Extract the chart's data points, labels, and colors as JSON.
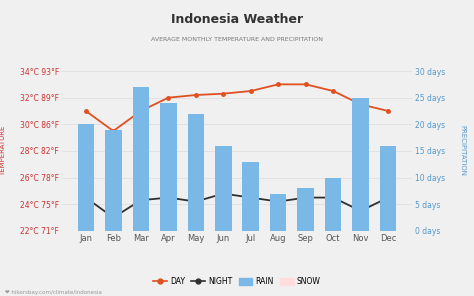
{
  "title": "Indonesia Weather",
  "subtitle": "AVERAGE MONTHLY TEMPERATURE AND PRECIPITATION",
  "months": [
    "Jan",
    "Feb",
    "Mar",
    "Apr",
    "May",
    "Jun",
    "Jul",
    "Aug",
    "Sep",
    "Oct",
    "Nov",
    "Dec"
  ],
  "day_temp": [
    31.0,
    29.5,
    31.0,
    32.0,
    32.2,
    32.3,
    32.5,
    33.0,
    33.0,
    32.5,
    31.5,
    31.0
  ],
  "night_temp": [
    24.5,
    23.0,
    24.3,
    24.5,
    24.2,
    24.8,
    24.5,
    24.2,
    24.5,
    24.5,
    23.5,
    24.5
  ],
  "rain_days": [
    20,
    19,
    27,
    24,
    22,
    16,
    13,
    7,
    8,
    10,
    25,
    16
  ],
  "ylim_left": [
    22,
    34
  ],
  "ylim_right": [
    0,
    30
  ],
  "yticks_left": [
    22,
    24,
    26,
    28,
    30,
    32,
    34
  ],
  "ytick_labels_left": [
    "22°C 71°F",
    "24°C 75°F",
    "26°C 78°F",
    "28°C 82°F",
    "30°C 86°F",
    "32°C 89°F",
    "34°C 93°F"
  ],
  "yticks_right": [
    0,
    5,
    10,
    15,
    20,
    25,
    30
  ],
  "ytick_labels_right": [
    "0 days",
    "5 days",
    "10 days",
    "15 days",
    "20 days",
    "25 days",
    "30 days"
  ],
  "bar_color": "#7ab8e8",
  "bar_alpha": 1.0,
  "day_color": "#e05020",
  "night_color": "#303030",
  "title_color": "#333333",
  "subtitle_color": "#777777",
  "tick_color_left": "#cc3333",
  "tick_color_right": "#5599cc",
  "bg_color": "#f0f0f0",
  "grid_color": "#e0e0e0",
  "watermark": "hikersbay.com/climate/indonesia",
  "snow_color": "#ffdddd",
  "figwidth": 4.74,
  "figheight": 2.96,
  "dpi": 100
}
